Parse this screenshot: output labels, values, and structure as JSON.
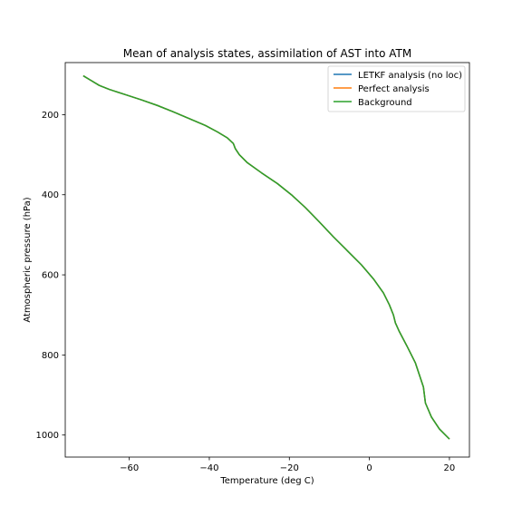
{
  "chart_data": {
    "type": "line",
    "title": "Mean of analysis states, assimilation of AST into ATM",
    "xlabel": "Temperature (deg C)",
    "ylabel": "Atmospheric pressure (hPa)",
    "xlim": [
      -76,
      25
    ],
    "ylim": [
      1055,
      70
    ],
    "y_inverted": true,
    "x_ticks": [
      -60,
      -40,
      -20,
      0,
      20
    ],
    "x_tick_labels": [
      "−60",
      "−40",
      "−20",
      "0",
      "20"
    ],
    "y_ticks": [
      200,
      400,
      600,
      800,
      1000
    ],
    "y_tick_labels": [
      "200",
      "400",
      "600",
      "800",
      "1000"
    ],
    "grid": false,
    "legend_position": "top-right",
    "series": [
      {
        "name": "LETKF analysis (no loc)",
        "color": "#1f77b4",
        "x": [
          -71.5,
          -69.5,
          -67.5,
          -65.0,
          -61.0,
          -57.0,
          -53.0,
          -49.0,
          -45.0,
          -41.0,
          -38.0,
          -35.5,
          -34.0,
          -33.5,
          -32.5,
          -30.5,
          -27.0,
          -23.0,
          -19.5,
          -16.0,
          -12.5,
          -9.0,
          -5.5,
          -2.0,
          1.0,
          3.5,
          5.0,
          6.0,
          6.5,
          7.5,
          9.5,
          11.5,
          12.5,
          13.5,
          14.0,
          15.5,
          17.5,
          20.0
        ],
        "y": [
          103,
          115,
          127,
          137,
          150,
          163,
          177,
          193,
          210,
          227,
          243,
          258,
          272,
          285,
          300,
          320,
          345,
          372,
          400,
          432,
          468,
          505,
          540,
          575,
          610,
          645,
          675,
          700,
          720,
          742,
          780,
          820,
          850,
          880,
          920,
          955,
          985,
          1010
        ]
      },
      {
        "name": "Perfect analysis",
        "color": "#ff7f0e",
        "x": [
          -71.5,
          -69.5,
          -67.5,
          -65.0,
          -61.0,
          -57.0,
          -53.0,
          -49.0,
          -45.0,
          -41.0,
          -38.0,
          -35.5,
          -34.0,
          -33.5,
          -32.5,
          -30.5,
          -27.0,
          -23.0,
          -19.5,
          -16.0,
          -12.5,
          -9.0,
          -5.5,
          -2.0,
          1.0,
          3.5,
          5.0,
          6.0,
          6.5,
          7.5,
          9.5,
          11.5,
          12.5,
          13.5,
          14.0,
          15.5,
          17.5,
          20.0
        ],
        "y": [
          103,
          115,
          127,
          137,
          150,
          163,
          177,
          193,
          210,
          227,
          243,
          258,
          272,
          285,
          300,
          320,
          345,
          372,
          400,
          432,
          468,
          505,
          540,
          575,
          610,
          645,
          675,
          700,
          720,
          742,
          780,
          820,
          850,
          880,
          920,
          955,
          985,
          1010
        ]
      },
      {
        "name": "Background",
        "color": "#2ca02c",
        "x": [
          -71.5,
          -69.5,
          -67.5,
          -65.0,
          -61.0,
          -57.0,
          -53.0,
          -49.0,
          -45.0,
          -41.0,
          -38.0,
          -35.5,
          -34.0,
          -33.5,
          -32.5,
          -30.5,
          -27.0,
          -23.0,
          -19.5,
          -16.0,
          -12.5,
          -9.0,
          -5.5,
          -2.0,
          1.0,
          3.5,
          5.0,
          6.0,
          6.5,
          7.5,
          9.5,
          11.5,
          12.5,
          13.5,
          14.0,
          15.5,
          17.5,
          20.0
        ],
        "y": [
          103,
          115,
          127,
          137,
          150,
          163,
          177,
          193,
          210,
          227,
          243,
          258,
          272,
          285,
          300,
          320,
          345,
          372,
          400,
          432,
          468,
          505,
          540,
          575,
          610,
          645,
          675,
          700,
          720,
          742,
          780,
          820,
          850,
          880,
          920,
          955,
          985,
          1010
        ]
      }
    ]
  }
}
